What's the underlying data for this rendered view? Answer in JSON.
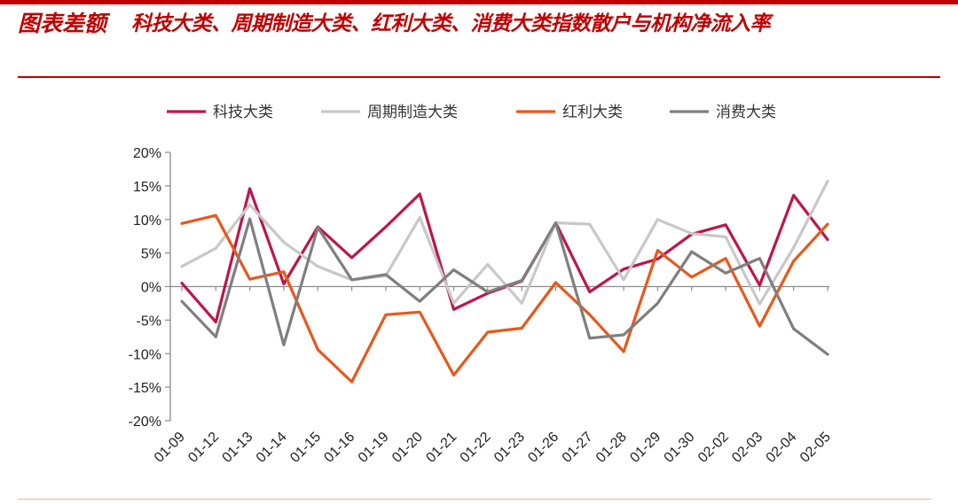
{
  "header": {
    "label": "图表差额",
    "title": "科技大类、周期制造大类、红利大类、消费大类指数散户与机构净流入率"
  },
  "colors": {
    "accent": "#c00000",
    "series": [
      "#c0144a",
      "#c8c8c8",
      "#e8581c",
      "#7f7f7f"
    ]
  },
  "chart_data": {
    "type": "line",
    "title": "",
    "xlabel": "",
    "ylabel": "",
    "ylim": [
      -20,
      20
    ],
    "ytick_step": 5,
    "y_format": "percent",
    "legend_position": "top",
    "grid": false,
    "x": [
      "01-09",
      "01-12",
      "01-13",
      "01-14",
      "01-15",
      "01-16",
      "01-19",
      "01-20",
      "01-21",
      "01-22",
      "01-23",
      "01-26",
      "01-27",
      "01-28",
      "01-29",
      "01-30",
      "02-02",
      "02-03",
      "02-04",
      "02-05"
    ],
    "series": [
      {
        "name": "科技大类",
        "values": [
          0.5,
          -5.3,
          14.6,
          0.4,
          8.9,
          4.3,
          8.9,
          13.8,
          -3.4,
          -1.0,
          0.8,
          9.5,
          -0.8,
          2.6,
          4.1,
          7.8,
          9.2,
          0.2,
          13.6,
          7.0
        ]
      },
      {
        "name": "周期制造大类",
        "values": [
          3.0,
          5.7,
          12.2,
          6.6,
          3.0,
          1.0,
          1.6,
          10.3,
          -2.5,
          3.3,
          -2.5,
          9.5,
          9.3,
          1.0,
          10.0,
          7.9,
          7.4,
          -2.6,
          5.8,
          15.7
        ]
      },
      {
        "name": "红利大类",
        "values": [
          9.4,
          10.6,
          1.1,
          2.2,
          -9.4,
          -14.2,
          -4.2,
          -3.8,
          -13.2,
          -6.8,
          -6.2,
          0.6,
          -4.2,
          -9.7,
          5.4,
          1.4,
          4.2,
          -5.9,
          3.8,
          9.3
        ]
      },
      {
        "name": "消费大类",
        "values": [
          -2.2,
          -7.5,
          10.1,
          -8.7,
          8.8,
          1.0,
          1.8,
          -2.2,
          2.5,
          -0.8,
          0.9,
          9.5,
          -7.7,
          -7.2,
          -2.5,
          5.2,
          2.0,
          4.2,
          -6.3,
          -10.1
        ]
      }
    ]
  }
}
